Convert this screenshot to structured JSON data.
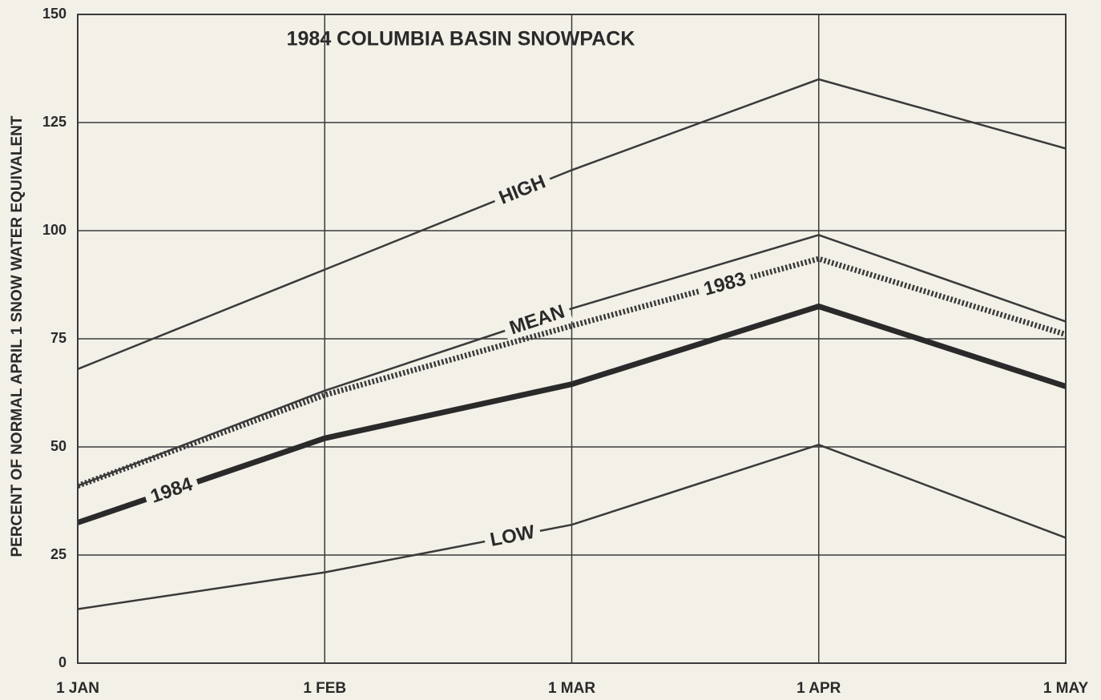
{
  "chart_data": {
    "type": "line",
    "title": "1984 COLUMBIA BASIN SNOWPACK",
    "y_label": "PERCENT OF NORMAL APRIL 1 SNOW WATER EQUIVALENT",
    "categories": [
      "1 JAN",
      "1 FEB",
      "1 MAR",
      "1 APR",
      "1 MAY"
    ],
    "ylim": [
      0,
      150
    ],
    "yticks": [
      0,
      25,
      50,
      75,
      100,
      125,
      150
    ],
    "grid": true,
    "series": [
      {
        "name": "HIGH",
        "color": "#3a3a3a",
        "values": [
          68,
          91,
          114,
          135,
          119
        ]
      },
      {
        "name": "MEAN",
        "color": "#3a3a3a",
        "values": [
          41,
          63,
          82,
          99,
          79
        ]
      },
      {
        "name": "1983",
        "color": "#3a3a3a",
        "values": [
          41,
          62,
          78,
          93.5,
          76
        ]
      },
      {
        "name": "1984",
        "color": "#2a2a2a",
        "values": [
          32.5,
          52,
          64.5,
          82.5,
          64
        ]
      },
      {
        "name": "LOW",
        "color": "#3a3a3a",
        "values": [
          12.5,
          21,
          32,
          50.5,
          29
        ]
      }
    ]
  }
}
